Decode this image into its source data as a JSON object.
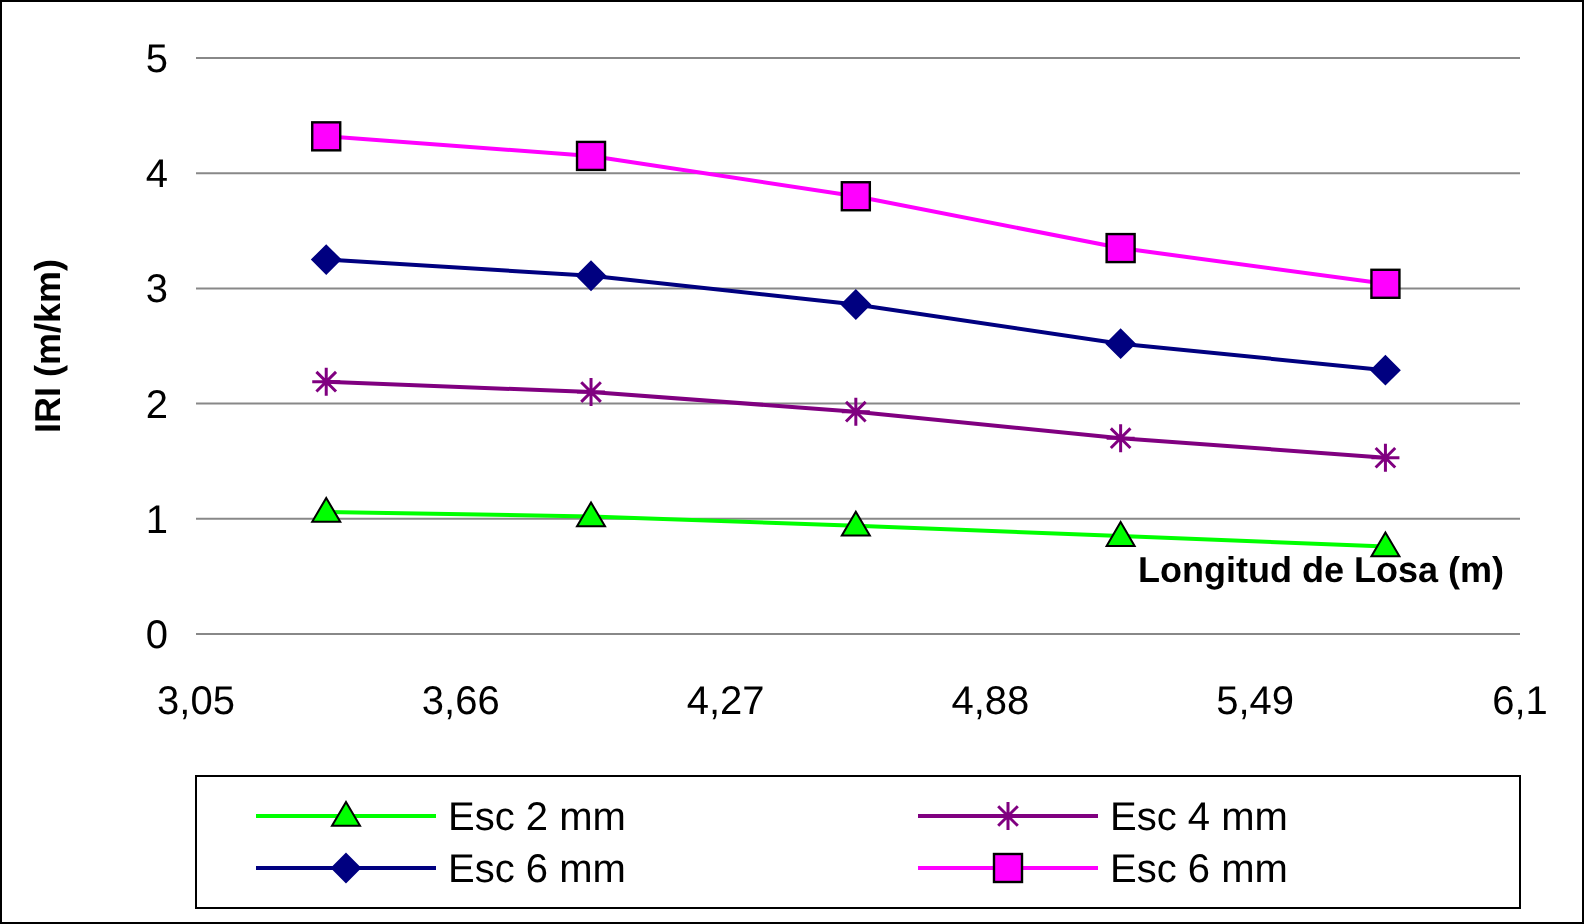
{
  "chart_data": {
    "type": "line",
    "xlabel": "Longitud de Losa (m)",
    "ylabel": "IRI (m/km)",
    "xlim": [
      3.05,
      6.1
    ],
    "xticks": [
      {
        "value": 3.05,
        "label": "3,05"
      },
      {
        "value": 3.66,
        "label": "3,66"
      },
      {
        "value": 4.27,
        "label": "4,27"
      },
      {
        "value": 4.88,
        "label": "4,88"
      },
      {
        "value": 5.49,
        "label": "5,49"
      },
      {
        "value": 6.1,
        "label": "6,1"
      }
    ],
    "ylim": [
      0,
      5
    ],
    "yticks": [
      0,
      1,
      2,
      3,
      4,
      5
    ],
    "grid": "y",
    "legend": "bottom",
    "x": [
      3.35,
      3.96,
      4.57,
      5.18,
      5.79
    ],
    "series": [
      {
        "name": "Esc 2 mm",
        "color": "#00ff00",
        "marker": "triangle",
        "values": [
          1.06,
          1.02,
          0.94,
          0.85,
          0.76
        ]
      },
      {
        "name": "Esc 4 mm",
        "color": "#800080",
        "marker": "cross",
        "values": [
          2.19,
          2.1,
          1.93,
          1.7,
          1.53
        ]
      },
      {
        "name": "Esc 6 mm",
        "color": "#000080",
        "marker": "diamond",
        "values": [
          3.25,
          3.11,
          2.86,
          2.52,
          2.29
        ]
      },
      {
        "name": "Esc 6 mm",
        "color": "#ff00ff",
        "marker": "square",
        "values": [
          4.32,
          4.15,
          3.8,
          3.35,
          3.04
        ]
      }
    ]
  }
}
